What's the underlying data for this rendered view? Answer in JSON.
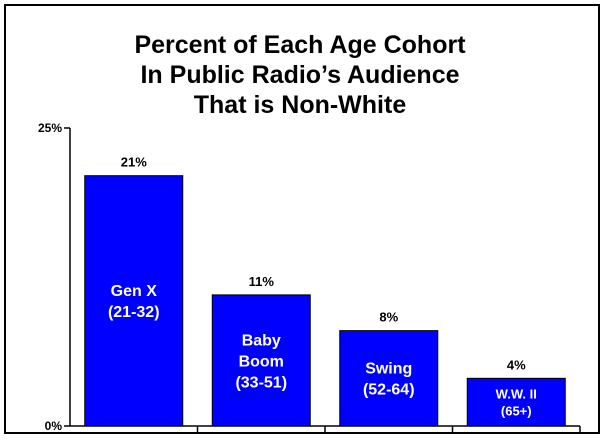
{
  "chart_data": {
    "type": "bar",
    "title_lines": [
      "Percent of Each Age Cohort",
      "In Public Radio’s Audience",
      "That is Non-White"
    ],
    "categories": [
      [
        "Gen X",
        "(21-32)"
      ],
      [
        "Baby",
        "Boom",
        "(33-51)"
      ],
      [
        "Swing",
        "(52-64)"
      ],
      [
        "W.W. II",
        "(65+)"
      ]
    ],
    "values": [
      21,
      11,
      8,
      4
    ],
    "data_labels": [
      "21%",
      "11%",
      "8%",
      "4%"
    ],
    "yticks": [
      {
        "value": 0,
        "label": "0%"
      },
      {
        "value": 25,
        "label": "25%"
      }
    ],
    "ylim": [
      0,
      25
    ],
    "grid": false,
    "legend": false,
    "bar_color": "#0000FF",
    "bar_label_color": "#FFFFFF"
  }
}
